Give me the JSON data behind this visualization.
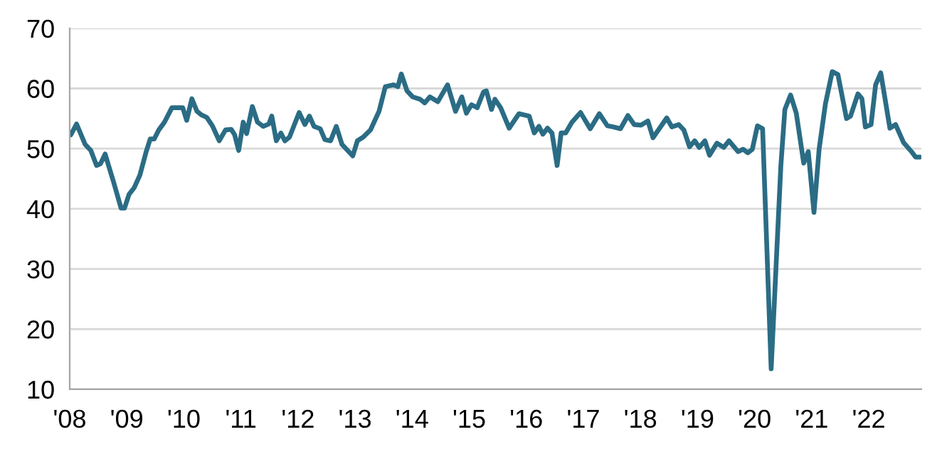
{
  "chart_data": {
    "type": "line",
    "x": [
      2008.02,
      2008.12,
      2008.27,
      2008.37,
      2008.47,
      2008.54,
      2008.62,
      2008.77,
      2008.9,
      2008.96,
      2009.04,
      2009.13,
      2009.23,
      2009.34,
      2009.41,
      2009.48,
      2009.56,
      2009.66,
      2009.79,
      2009.98,
      2010.05,
      2010.14,
      2010.23,
      2010.31,
      2010.4,
      2010.5,
      2010.62,
      2010.73,
      2010.83,
      2010.89,
      2010.96,
      2011.04,
      2011.1,
      2011.2,
      2011.29,
      2011.39,
      2011.49,
      2011.54,
      2011.62,
      2011.7,
      2011.77,
      2011.85,
      2012.02,
      2012.12,
      2012.2,
      2012.28,
      2012.39,
      2012.47,
      2012.57,
      2012.67,
      2012.77,
      2012.89,
      2012.96,
      2013.04,
      2013.14,
      2013.27,
      2013.42,
      2013.53,
      2013.67,
      2013.75,
      2013.81,
      2013.91,
      2014.01,
      2014.14,
      2014.22,
      2014.31,
      2014.45,
      2014.62,
      2014.76,
      2014.87,
      2014.95,
      2015.04,
      2015.14,
      2015.25,
      2015.3,
      2015.39,
      2015.45,
      2015.55,
      2015.7,
      2015.87,
      2016.05,
      2016.14,
      2016.22,
      2016.29,
      2016.37,
      2016.45,
      2016.54,
      2016.61,
      2016.69,
      2016.8,
      2016.95,
      2017.12,
      2017.28,
      2017.42,
      2017.53,
      2017.65,
      2017.78,
      2017.89,
      2018.01,
      2018.13,
      2018.22,
      2018.46,
      2018.55,
      2018.67,
      2018.76,
      2018.86,
      2018.95,
      2019.03,
      2019.13,
      2019.21,
      2019.34,
      2019.46,
      2019.55,
      2019.71,
      2019.8,
      2019.88,
      2019.96,
      2020.05,
      2020.14,
      2020.29,
      2020.46,
      2020.53,
      2020.63,
      2020.73,
      2020.86,
      2020.94,
      2021.04,
      2021.13,
      2021.24,
      2021.36,
      2021.46,
      2021.61,
      2021.68,
      2021.81,
      2021.88,
      2021.94,
      2022.04,
      2022.12,
      2022.21,
      2022.37,
      2022.47,
      2022.61,
      2022.74,
      2022.82,
      2022.9
    ],
    "series": [
      {
        "color": "#2b6c85",
        "values": [
          52.3,
          54.1,
          50.7,
          49.7,
          47.2,
          47.5,
          49.1,
          44.4,
          40.1,
          40.1,
          42.4,
          43.5,
          45.6,
          49.5,
          51.6,
          51.6,
          53.1,
          54.4,
          56.8,
          56.8,
          54.7,
          58.3,
          56.2,
          55.6,
          55.2,
          53.8,
          51.3,
          53.1,
          53.2,
          52.3,
          49.7,
          54.4,
          52.5,
          57.0,
          54.4,
          53.7,
          54.1,
          55.4,
          51.3,
          52.6,
          51.3,
          51.9,
          56.0,
          54.0,
          55.4,
          53.7,
          53.3,
          51.5,
          51.3,
          53.7,
          50.7,
          49.5,
          48.8,
          51.3,
          51.9,
          53.1,
          56.2,
          60.3,
          60.6,
          60.3,
          62.4,
          59.6,
          58.6,
          58.2,
          57.6,
          58.6,
          57.8,
          60.6,
          56.2,
          58.6,
          55.9,
          57.3,
          56.8,
          59.4,
          59.6,
          56.5,
          58.2,
          56.8,
          53.4,
          55.8,
          55.4,
          52.6,
          53.7,
          52.4,
          53.4,
          52.6,
          47.2,
          52.6,
          52.6,
          54.4,
          56.0,
          53.3,
          55.8,
          53.8,
          53.6,
          53.3,
          55.5,
          54.0,
          53.9,
          54.6,
          51.8,
          55.1,
          53.6,
          54.0,
          53.1,
          50.3,
          51.3,
          50.2,
          51.3,
          48.9,
          50.9,
          50.2,
          51.3,
          49.5,
          49.9,
          49.3,
          49.9,
          53.8,
          53.3,
          13.4,
          47.2,
          56.5,
          58.9,
          55.9,
          47.6,
          49.5,
          39.4,
          49.9,
          57.4,
          62.8,
          62.3,
          55.0,
          55.4,
          59.1,
          58.3,
          53.6,
          54.0,
          60.6,
          62.6,
          53.4,
          54.0,
          51.0,
          49.6,
          48.6,
          48.6
        ]
      }
    ],
    "xlim": [
      2008,
      2022.92
    ],
    "xticks": [
      {
        "value": 2008,
        "label": "'08"
      },
      {
        "value": 2009,
        "label": "'09"
      },
      {
        "value": 2010,
        "label": "'10"
      },
      {
        "value": 2011,
        "label": "'11"
      },
      {
        "value": 2012,
        "label": "'12"
      },
      {
        "value": 2013,
        "label": "'13"
      },
      {
        "value": 2014,
        "label": "'14"
      },
      {
        "value": 2015,
        "label": "'15"
      },
      {
        "value": 2016,
        "label": "'16"
      },
      {
        "value": 2017,
        "label": "'17"
      },
      {
        "value": 2018,
        "label": "'18"
      },
      {
        "value": 2019,
        "label": "'19"
      },
      {
        "value": 2020,
        "label": "'20"
      },
      {
        "value": 2021,
        "label": "'21"
      },
      {
        "value": 2022,
        "label": "'22"
      }
    ],
    "ylim": [
      10,
      70
    ],
    "yticks": [
      10,
      20,
      30,
      40,
      50,
      60,
      70
    ],
    "grid": "y",
    "marker": "none",
    "line_style": "solid"
  }
}
